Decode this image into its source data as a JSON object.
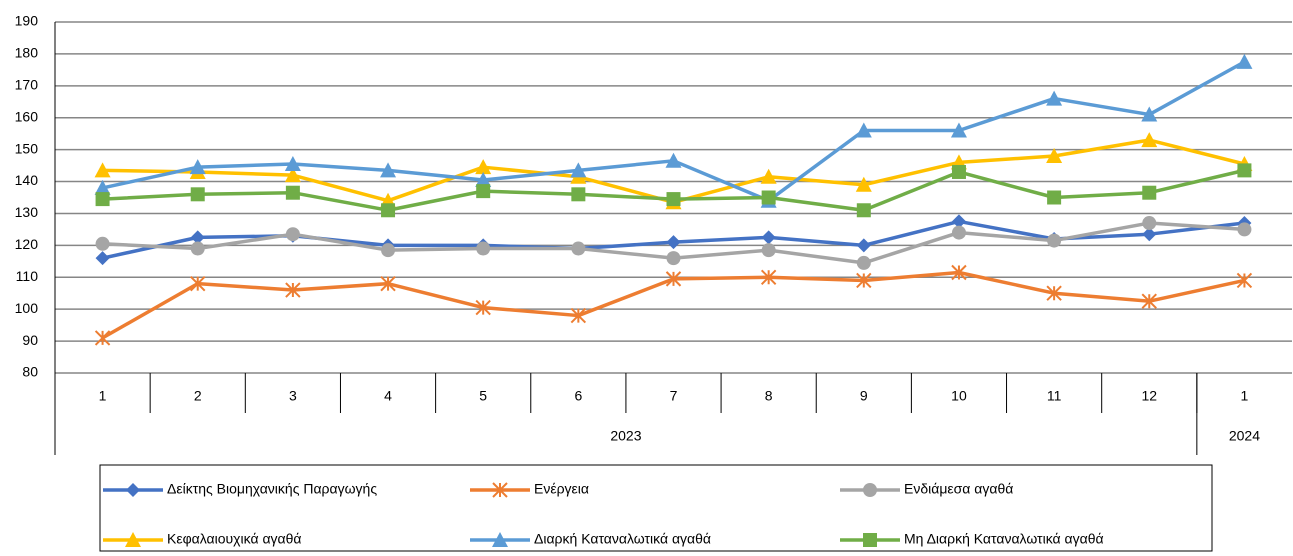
{
  "chart_data": {
    "type": "line",
    "categories": [
      "1",
      "2",
      "3",
      "4",
      "5",
      "6",
      "7",
      "8",
      "9",
      "10",
      "11",
      "12",
      "1"
    ],
    "category_groups": [
      {
        "label": "2023",
        "span": 12
      },
      {
        "label": "2024",
        "span": 1
      }
    ],
    "ylim": [
      80,
      190
    ],
    "yticks": [
      80,
      90,
      100,
      110,
      120,
      130,
      140,
      150,
      160,
      170,
      180,
      190
    ],
    "grid": true,
    "legend": "bottom",
    "series": [
      {
        "name": "Δείκτης Βιομηχανικής Παραγωγής",
        "color": "#4472c4",
        "marker": "diamond",
        "values": [
          116,
          122.5,
          123,
          120,
          120,
          119,
          121,
          122.5,
          120,
          127.5,
          122,
          123.5,
          127
        ]
      },
      {
        "name": "Ενέργεια",
        "color": "#ed7d31",
        "marker": "star",
        "values": [
          91,
          108,
          106,
          108,
          100.5,
          98,
          109.5,
          110,
          109,
          111.5,
          105,
          102.5,
          109
        ]
      },
      {
        "name": "Ενδιάμεσα αγαθά",
        "color": "#a5a5a5",
        "marker": "circle",
        "values": [
          120.5,
          119,
          123.5,
          118.5,
          119,
          119,
          116,
          118.5,
          114.5,
          124,
          121.5,
          127,
          125
        ]
      },
      {
        "name": "Κεφαλαιουχικά αγαθά",
        "color": "#ffc000",
        "marker": "triangle",
        "values": [
          143.5,
          143,
          142,
          134,
          144.5,
          141.5,
          133.5,
          141.5,
          139,
          146,
          148,
          153,
          145.5
        ]
      },
      {
        "name": "Διαρκή Καταναλωτικά αγαθά",
        "color": "#5b9bd5",
        "marker": "triangle",
        "values": [
          138,
          144.5,
          145.5,
          143.5,
          140.5,
          143.5,
          146.5,
          134,
          156,
          156,
          166,
          161,
          177.5
        ]
      },
      {
        "name": "Μη Διαρκή Καταναλωτικά αγαθά",
        "color": "#70ad47",
        "marker": "square",
        "values": [
          134.5,
          136,
          136.5,
          131,
          137,
          136,
          134.5,
          135,
          131,
          143,
          135,
          136.5,
          143.5
        ]
      }
    ]
  }
}
